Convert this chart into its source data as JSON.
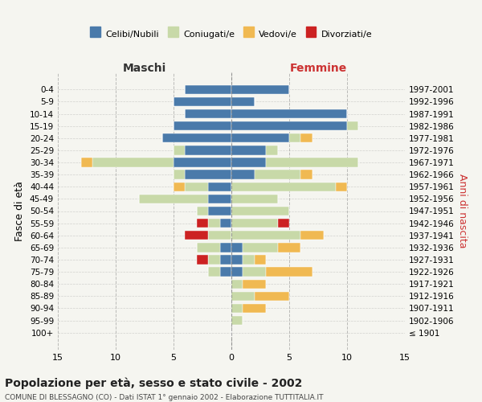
{
  "age_groups": [
    "100+",
    "95-99",
    "90-94",
    "85-89",
    "80-84",
    "75-79",
    "70-74",
    "65-69",
    "60-64",
    "55-59",
    "50-54",
    "45-49",
    "40-44",
    "35-39",
    "30-34",
    "25-29",
    "20-24",
    "15-19",
    "10-14",
    "5-9",
    "0-4"
  ],
  "birth_years": [
    "≤ 1901",
    "1902-1906",
    "1907-1911",
    "1912-1916",
    "1917-1921",
    "1922-1926",
    "1927-1931",
    "1932-1936",
    "1937-1941",
    "1942-1946",
    "1947-1951",
    "1952-1956",
    "1957-1961",
    "1962-1966",
    "1967-1971",
    "1972-1976",
    "1977-1981",
    "1982-1986",
    "1987-1991",
    "1992-1996",
    "1997-2001"
  ],
  "colors": {
    "celibi": "#4a7aaa",
    "coniugati": "#c8d9a8",
    "vedovi": "#f0b952",
    "divorziati": "#cc2222"
  },
  "males": {
    "celibi": [
      0,
      0,
      0,
      0,
      0,
      1,
      1,
      1,
      0,
      1,
      2,
      2,
      2,
      4,
      5,
      4,
      6,
      5,
      4,
      5,
      4
    ],
    "coniugati": [
      0,
      0,
      0,
      0,
      0,
      1,
      1,
      2,
      2,
      1,
      1,
      6,
      2,
      1,
      7,
      1,
      0,
      0,
      0,
      0,
      0
    ],
    "vedovi": [
      0,
      0,
      0,
      0,
      0,
      0,
      0,
      0,
      0,
      0,
      0,
      0,
      1,
      0,
      1,
      0,
      0,
      0,
      0,
      0,
      0
    ],
    "divorziati": [
      0,
      0,
      0,
      0,
      0,
      0,
      1,
      0,
      2,
      1,
      0,
      0,
      0,
      0,
      0,
      0,
      0,
      0,
      0,
      0,
      0
    ]
  },
  "females": {
    "nubili": [
      0,
      0,
      0,
      0,
      0,
      1,
      1,
      1,
      0,
      0,
      0,
      0,
      0,
      2,
      3,
      3,
      5,
      10,
      10,
      2,
      5
    ],
    "coniugate": [
      0,
      1,
      1,
      2,
      1,
      2,
      1,
      3,
      6,
      4,
      5,
      4,
      9,
      4,
      8,
      1,
      1,
      1,
      0,
      0,
      0
    ],
    "vedove": [
      0,
      0,
      2,
      3,
      2,
      4,
      1,
      2,
      2,
      0,
      0,
      0,
      1,
      1,
      0,
      0,
      1,
      0,
      0,
      0,
      0
    ],
    "divorziate": [
      0,
      0,
      0,
      0,
      0,
      0,
      0,
      0,
      0,
      1,
      0,
      0,
      0,
      0,
      0,
      0,
      0,
      0,
      0,
      0,
      0
    ]
  },
  "xlim": 15,
  "title": "Popolazione per età, sesso e stato civile - 2002",
  "subtitle": "COMUNE DI BLESSAGNO (CO) - Dati ISTAT 1° gennaio 2002 - Elaborazione TUTTITALIA.IT",
  "ylabel_left": "Fasce di età",
  "ylabel_right": "Anni di nascita",
  "xlabel_left": "Maschi",
  "xlabel_right": "Femmine",
  "legend_labels": [
    "Celibi/Nubili",
    "Coniugati/e",
    "Vedovi/e",
    "Divorziati/e"
  ],
  "bg_color": "#f5f5f0"
}
